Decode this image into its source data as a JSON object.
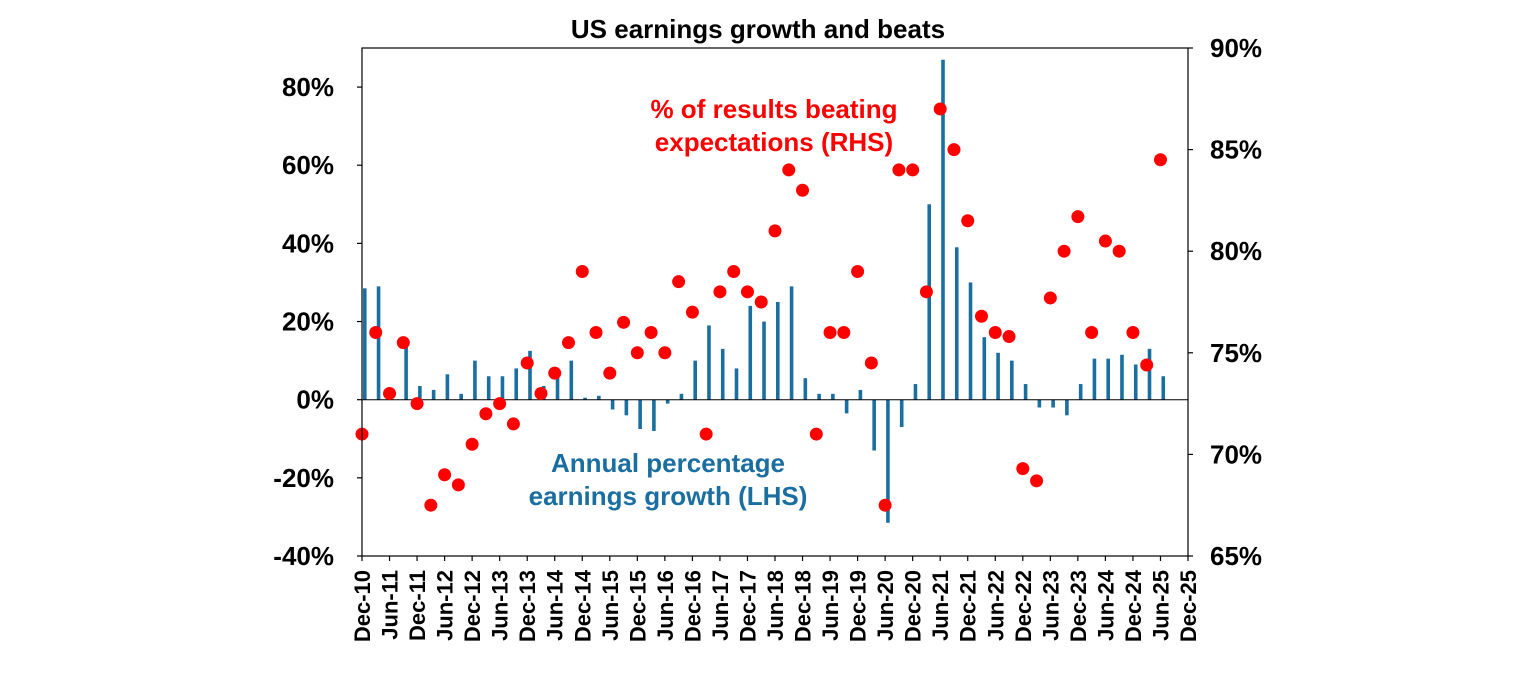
{
  "chart_data": {
    "type": "bar+scatter",
    "title": "US earnings growth and beats",
    "categories": [
      "Dec-10",
      "Mar-11",
      "Jun-11",
      "Sep-11",
      "Dec-11",
      "Mar-12",
      "Jun-12",
      "Sep-12",
      "Dec-12",
      "Mar-13",
      "Jun-13",
      "Sep-13",
      "Dec-13",
      "Mar-14",
      "Jun-14",
      "Sep-14",
      "Dec-14",
      "Mar-15",
      "Jun-15",
      "Sep-15",
      "Dec-15",
      "Mar-16",
      "Jun-16",
      "Sep-16",
      "Dec-16",
      "Mar-17",
      "Jun-17",
      "Sep-17",
      "Dec-17",
      "Mar-18",
      "Jun-18",
      "Sep-18",
      "Dec-18",
      "Mar-19",
      "Jun-19",
      "Sep-19",
      "Dec-19",
      "Mar-20",
      "Jun-20",
      "Sep-20",
      "Dec-20",
      "Mar-21",
      "Jun-21",
      "Sep-21",
      "Dec-21",
      "Mar-22",
      "Jun-22",
      "Sep-22",
      "Dec-22",
      "Mar-23",
      "Jun-23",
      "Sep-23",
      "Dec-23",
      "Mar-24",
      "Jun-24",
      "Sep-24",
      "Dec-24",
      "Mar-25",
      "Jun-25",
      "Sep-25",
      "Dec-25"
    ],
    "x_tick_labels": [
      "Dec-10",
      "Jun-11",
      "Dec-11",
      "Jun-12",
      "Dec-12",
      "Jun-13",
      "Dec-13",
      "Jun-14",
      "Dec-14",
      "Jun-15",
      "Dec-15",
      "Jun-16",
      "Dec-16",
      "Jun-17",
      "Dec-17",
      "Jun-18",
      "Dec-18",
      "Jun-19",
      "Dec-19",
      "Jun-20",
      "Dec-20",
      "Jun-21",
      "Dec-21",
      "Jun-22",
      "Dec-22",
      "Jun-23",
      "Dec-23",
      "Jun-24",
      "Dec-24",
      "Jun-25",
      "Dec-25"
    ],
    "series": [
      {
        "name": "Annual percentage earnings growth (LHS)",
        "type": "bar",
        "axis": "left",
        "color": "#1a6ea0",
        "values": [
          28.5,
          29,
          null,
          14.5,
          3.5,
          2.5,
          6.5,
          1.5,
          10,
          6,
          6,
          8,
          12.5,
          3.5,
          7,
          10,
          0.5,
          1,
          -2.5,
          -4,
          -7.5,
          -8,
          -1,
          1.5,
          10,
          19,
          13,
          8,
          24,
          20,
          25,
          29,
          5.5,
          1.5,
          1.5,
          -3.5,
          2.5,
          -13,
          -31.5,
          -7,
          4,
          50,
          87,
          39,
          30,
          16,
          12,
          10,
          4,
          -2,
          -2,
          -4,
          4,
          10.5,
          10.5,
          11.5,
          9,
          13,
          6,
          null,
          null
        ]
      },
      {
        "name": "% of results beating expectations (RHS)",
        "type": "scatter",
        "axis": "right",
        "color": "#ff0000",
        "values": [
          71,
          76,
          73,
          75.5,
          72.5,
          67.5,
          69,
          68.5,
          70.5,
          72,
          72.5,
          71.5,
          74.5,
          73,
          74,
          75.5,
          79,
          76,
          74,
          76.5,
          75,
          76,
          75,
          78.5,
          77,
          71,
          78,
          79,
          78,
          77.5,
          81,
          84,
          83,
          71,
          76,
          76,
          79,
          74.5,
          67.5,
          84,
          84,
          78,
          87,
          85,
          81.5,
          76.8,
          76,
          75.8,
          69.3,
          68.7,
          77.7,
          80,
          81.7,
          76,
          80.5,
          80,
          76,
          74.4,
          84.5,
          null,
          null
        ]
      }
    ],
    "y_left": {
      "min": -40,
      "max": 90,
      "ticks": [
        -40,
        -20,
        0,
        20,
        40,
        60,
        80
      ],
      "tick_labels": [
        "-40%",
        "-20%",
        "0%",
        "20%",
        "40%",
        "60%",
        "80%"
      ]
    },
    "y_right": {
      "min": 65,
      "max": 90,
      "ticks": [
        65,
        70,
        75,
        80,
        85,
        90
      ],
      "tick_labels": [
        "65%",
        "70%",
        "75%",
        "80%",
        "85%",
        "90%"
      ]
    },
    "annotations": [
      {
        "text_lines": [
          "% of results beating",
          "expectations (RHS)"
        ],
        "color": "#ff0000",
        "series": "scatter"
      },
      {
        "text_lines": [
          "Annual percentage",
          "earnings growth (LHS)"
        ],
        "color": "#1a6ea0",
        "series": "bar"
      }
    ],
    "grid": false,
    "legend": "none"
  }
}
